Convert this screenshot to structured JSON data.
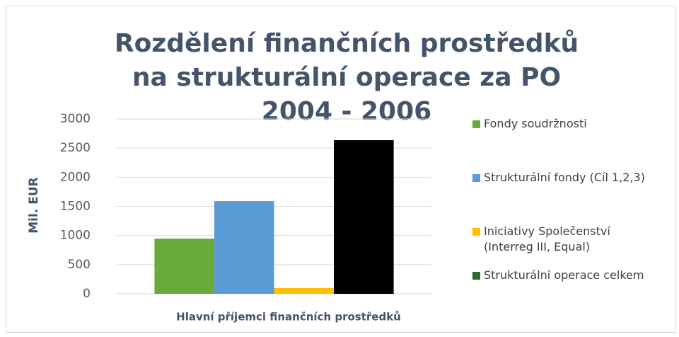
{
  "chart_data": {
    "type": "bar",
    "title": "Rozdělení finančních prostředků na strukturální operace za PO 2004 - 2006",
    "xlabel": "Hlavní příjemci finančních prostředků",
    "ylabel": "Mil. EUR",
    "categories": [
      null
    ],
    "series": [
      {
        "name": "Fondy soudržnosti",
        "color": "#6aaa3a",
        "values": [
          947
        ]
      },
      {
        "name": "Strukturální fondy (Cíl 1,2,3)",
        "color": "#5b9bd5",
        "values": [
          1590
        ]
      },
      {
        "name": "Iniciativy Společenství (Interreg III, Equal)",
        "color": "#ffc000",
        "values": [
          97
        ]
      },
      {
        "name": "Strukturální operace celkem",
        "color": "#000000",
        "legend_color": "#2e6b2e",
        "values": [
          2636
        ]
      }
    ],
    "ylim": [
      0,
      3000
    ],
    "yticks": [
      0,
      500,
      1000,
      1500,
      2000,
      2500,
      3000
    ],
    "grid": true,
    "legend": "right"
  }
}
